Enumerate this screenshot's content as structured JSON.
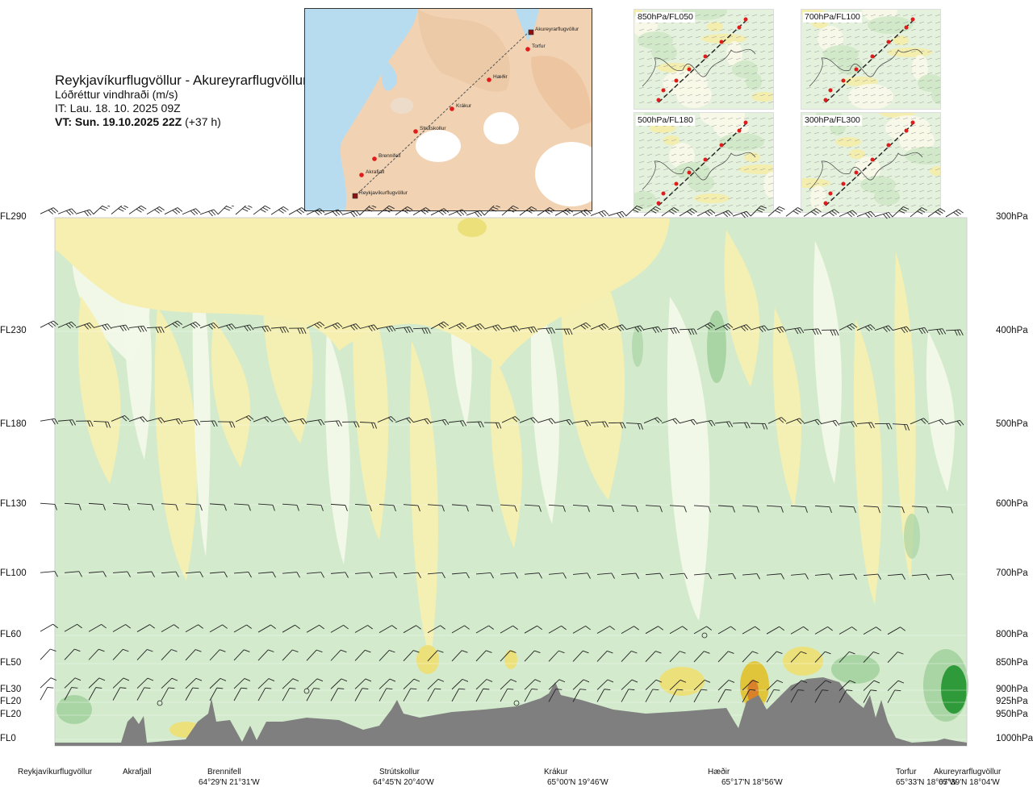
{
  "header": {
    "title": "Reykjavíkurflugvöllur - Akureyrarflugvöllur",
    "subtitle": "Lóðréttur vindhraði (m/s)",
    "it_line": "IT: Lau. 18. 10. 2025 09Z",
    "vt_bold": "VT: Sun. 19.10.2025 22Z",
    "vt_offset": "(+37 h)"
  },
  "route_map": {
    "points": [
      {
        "name": "Akureyrarflugvöllur",
        "kind": "airport"
      },
      {
        "name": "Torfur",
        "kind": "waypoint"
      },
      {
        "name": "Hæðir",
        "kind": "waypoint"
      },
      {
        "name": "Krákur",
        "kind": "waypoint"
      },
      {
        "name": "Strútskollur",
        "kind": "waypoint"
      },
      {
        "name": "Brennifell",
        "kind": "waypoint"
      },
      {
        "name": "Akrafjall",
        "kind": "waypoint"
      },
      {
        "name": "Reykjavíkurflugvöllur",
        "kind": "airport"
      }
    ]
  },
  "insets": [
    {
      "label": "850hPa/FL050"
    },
    {
      "label": "700hPa/FL100"
    },
    {
      "label": "500hPa/FL180"
    },
    {
      "label": "300hPa/FL300"
    }
  ],
  "levels": [
    {
      "fl": "FL290",
      "pres": "300hPa"
    },
    {
      "fl": "FL230",
      "pres": "400hPa"
    },
    {
      "fl": "FL180",
      "pres": "500hPa"
    },
    {
      "fl": "FL130",
      "pres": "600hPa"
    },
    {
      "fl": "FL100",
      "pres": "700hPa"
    },
    {
      "fl": "FL60",
      "pres": "800hPa"
    },
    {
      "fl": "FL50",
      "pres": "850hPa"
    },
    {
      "fl": "FL30",
      "pres": "900hPa"
    },
    {
      "fl": "FL20",
      "pres": "925hPa"
    },
    {
      "fl": "FL20",
      "pres": "950hPa"
    },
    {
      "fl": "FL0",
      "pres": "1000hPa"
    }
  ],
  "locations": [
    {
      "name": "Reykjavíkurflugvöllur",
      "coord": ""
    },
    {
      "name": "Akrafjall",
      "coord": ""
    },
    {
      "name": "Brennifell",
      "coord": "64°29'N 21°31'W"
    },
    {
      "name": "Strútskollur",
      "coord": "64°45'N 20°40'W"
    },
    {
      "name": "Krákur",
      "coord": "65°00'N 19°46'W"
    },
    {
      "name": "Hæðir",
      "coord": "65°17'N 18°56'W"
    },
    {
      "name": "Torfur",
      "coord": "65°33'N 18°07'W"
    },
    {
      "name": "Akureyrarflugvöllur",
      "coord": "65°39'N 18°04'W"
    }
  ],
  "colors": {
    "sink_weak": "#f6efb0",
    "sink_mid": "#ece07a",
    "sink_strong": "#e0c43a",
    "sink_max": "#d9822a",
    "lift_weak": "#f2f9e8",
    "lift_mid": "#d3ebcc",
    "lift_strong": "#a9d4a4",
    "lift_max": "#2f9a3a",
    "terrain": "#7f7f7f",
    "route": "#e01b1b",
    "sea": "#b8dcef",
    "land": "#f3cfae"
  }
}
